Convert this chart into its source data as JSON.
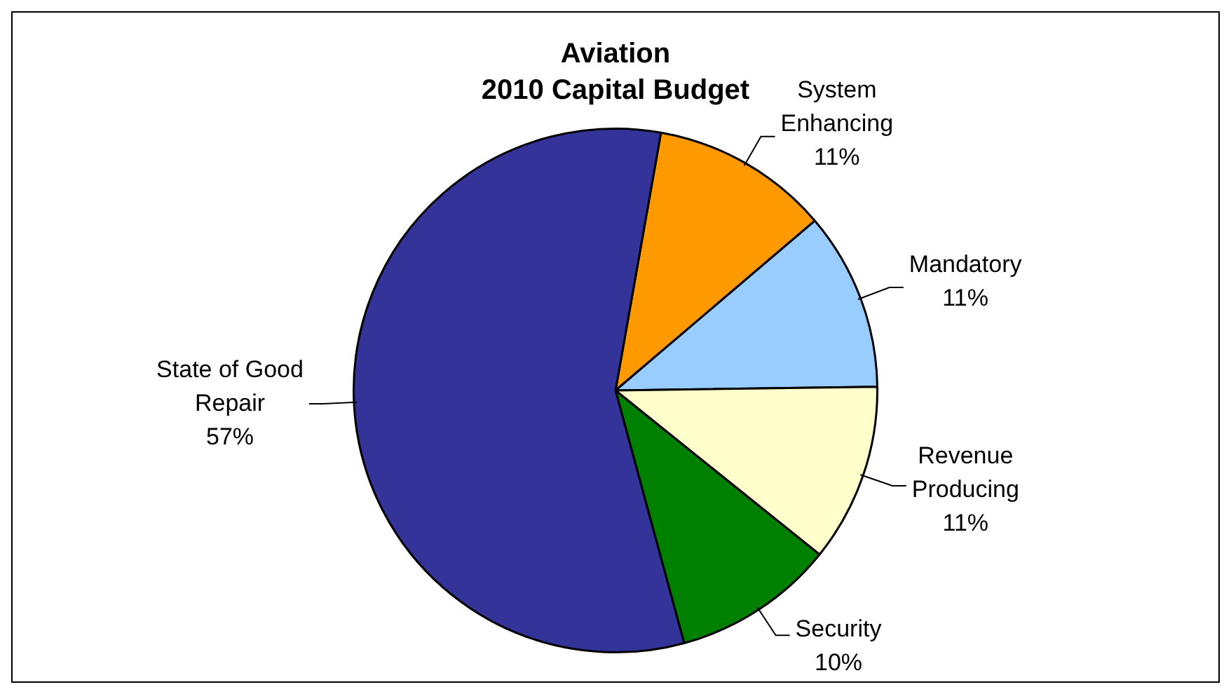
{
  "chart_data": {
    "type": "pie",
    "title": "Aviation",
    "subtitle": "2010 Capital Budget",
    "categories": [
      "System Enhancing",
      "Mandatory",
      "Revenue Producing",
      "Security",
      "State of Good Repair"
    ],
    "values": [
      11,
      11,
      11,
      10,
      57
    ],
    "value_labels": [
      "11%",
      "11%",
      "11%",
      "10%",
      "57%"
    ],
    "colors": [
      "#ff9900",
      "#99ccff",
      "#ffffcc",
      "#008000",
      "#333399"
    ],
    "legend": false
  }
}
